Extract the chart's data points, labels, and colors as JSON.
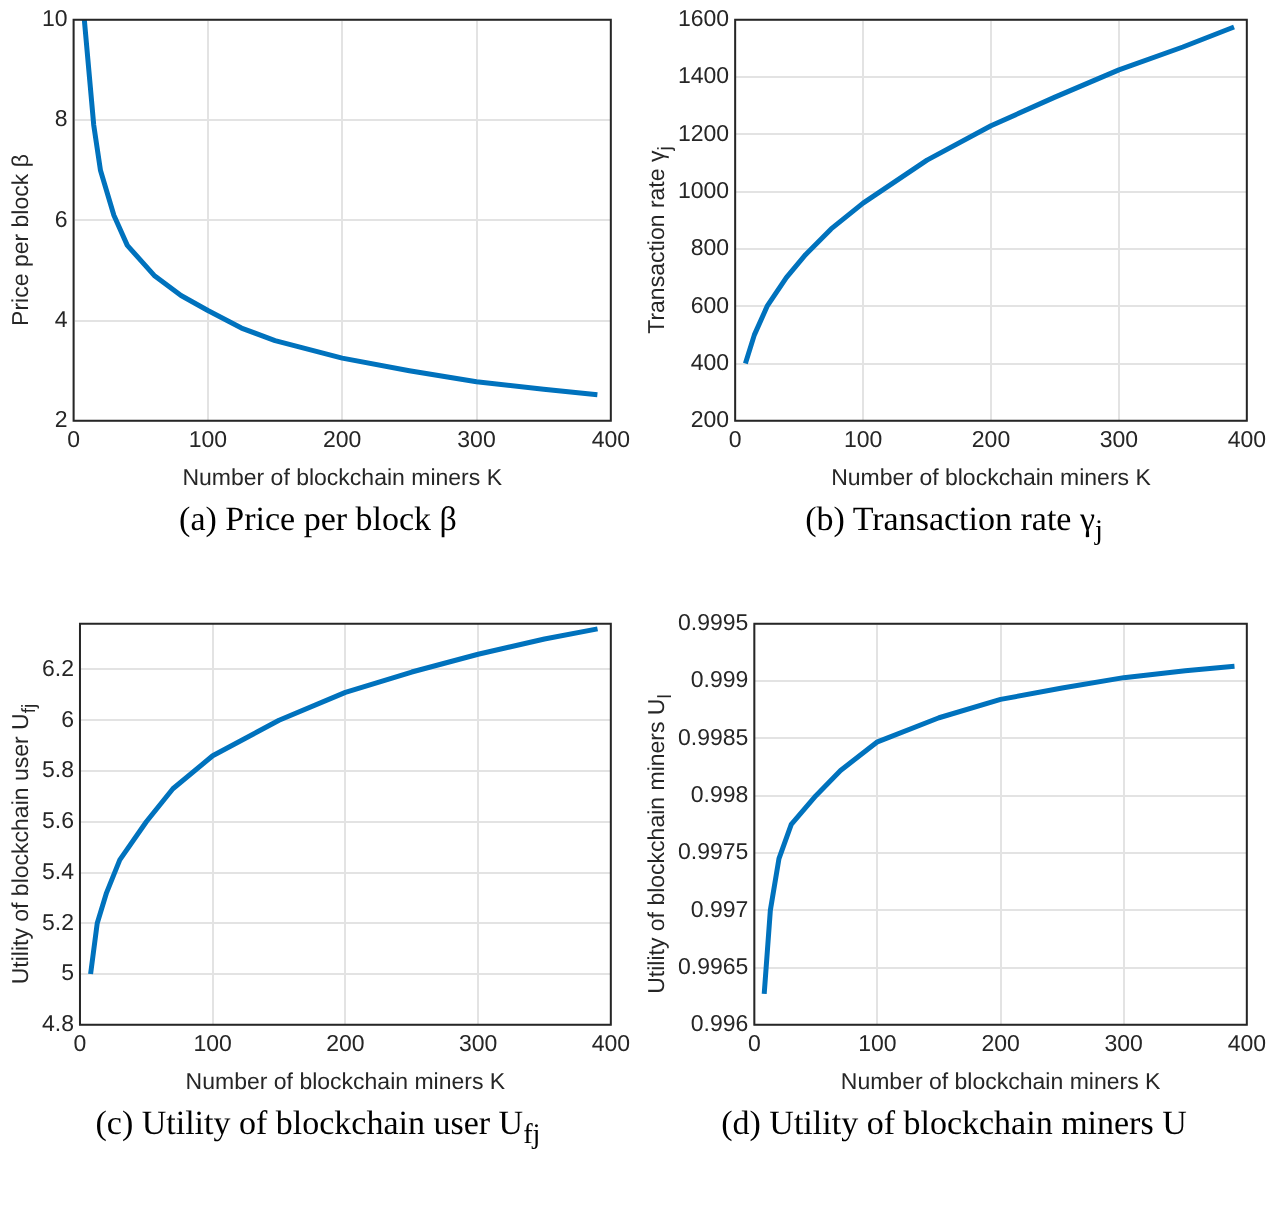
{
  "chart_data": [
    {
      "type": "line",
      "title": "(a) Price per block β",
      "xlabel": "Number of blockchain miners K",
      "ylabel": "Price per block β",
      "x": [
        8,
        15,
        20,
        30,
        40,
        50,
        60,
        80,
        100,
        125,
        150,
        200,
        250,
        300,
        350,
        390
      ],
      "series": [
        {
          "color": "#0072bd",
          "values": [
            10,
            7.9,
            7.0,
            6.1,
            5.5,
            5.2,
            4.9,
            4.5,
            4.2,
            3.85,
            3.6,
            3.25,
            3.0,
            2.78,
            2.63,
            2.52
          ]
        }
      ],
      "xlim": [
        0,
        400
      ],
      "xticks": [
        0,
        100,
        200,
        300,
        400
      ],
      "ylim": [
        2,
        10
      ],
      "yticks": [
        2,
        4,
        6,
        8,
        10
      ],
      "grid": true,
      "legend": false,
      "marker": "none",
      "line_style": "solid"
    },
    {
      "type": "line",
      "title": "(b) Transaction rate γ$_{j}$",
      "xlabel": "Number of blockchain miners K",
      "ylabel": "Transaction rate γ$_{j}$",
      "x": [
        8,
        15,
        25,
        40,
        55,
        75,
        100,
        150,
        200,
        250,
        300,
        350,
        390
      ],
      "series": [
        {
          "color": "#0072bd",
          "values": [
            400,
            500,
            600,
            700,
            780,
            870,
            960,
            1110,
            1230,
            1330,
            1425,
            1505,
            1575
          ]
        }
      ],
      "xlim": [
        0,
        400
      ],
      "xticks": [
        0,
        100,
        200,
        300,
        400
      ],
      "ylim": [
        200,
        1600
      ],
      "yticks": [
        200,
        400,
        600,
        800,
        1000,
        1200,
        1400,
        1600
      ],
      "grid": true,
      "legend": false,
      "marker": "none",
      "line_style": "solid"
    },
    {
      "type": "line",
      "title": "(c) Utility of blockchain user U$_{fj}$",
      "xlabel": "Number of blockchain miners K",
      "ylabel": "Utility of blockchain user U$_{fj}$",
      "x": [
        8,
        13,
        20,
        30,
        50,
        70,
        100,
        150,
        200,
        250,
        300,
        350,
        390
      ],
      "series": [
        {
          "color": "#0072bd",
          "values": [
            5.0,
            5.2,
            5.32,
            5.45,
            5.6,
            5.73,
            5.86,
            6.0,
            6.11,
            6.19,
            6.26,
            6.32,
            6.36
          ]
        }
      ],
      "xlim": [
        0,
        400
      ],
      "xticks": [
        0,
        100,
        200,
        300,
        400
      ],
      "ylim": [
        4.8,
        6.38
      ],
      "yticks": [
        4.8,
        5,
        5.2,
        5.4,
        5.6,
        5.8,
        6,
        6.2
      ],
      "grid": true,
      "legend": false,
      "marker": "none",
      "line_style": "solid"
    },
    {
      "type": "line",
      "title": "(d) Utility of blockchain miners U",
      "xlabel": "Number of blockchain miners K",
      "ylabel": "Utility of blockchain miners U$_{l}$",
      "x": [
        8,
        13,
        20,
        30,
        50,
        70,
        100,
        150,
        200,
        250,
        300,
        350,
        390
      ],
      "series": [
        {
          "color": "#0072bd",
          "values": [
            0.99627,
            0.997,
            0.99745,
            0.99775,
            0.998,
            0.99822,
            0.99847,
            0.99868,
            0.99884,
            0.99894,
            0.99903,
            0.99909,
            0.99913
          ]
        }
      ],
      "xlim": [
        0,
        400
      ],
      "xticks": [
        0,
        100,
        200,
        300,
        400
      ],
      "ylim": [
        0.996,
        0.9995
      ],
      "yticks": [
        0.996,
        0.9965,
        0.997,
        0.9975,
        0.998,
        0.9985,
        0.999,
        0.9995
      ],
      "grid": true,
      "legend": false,
      "marker": "none",
      "line_style": "solid"
    }
  ]
}
